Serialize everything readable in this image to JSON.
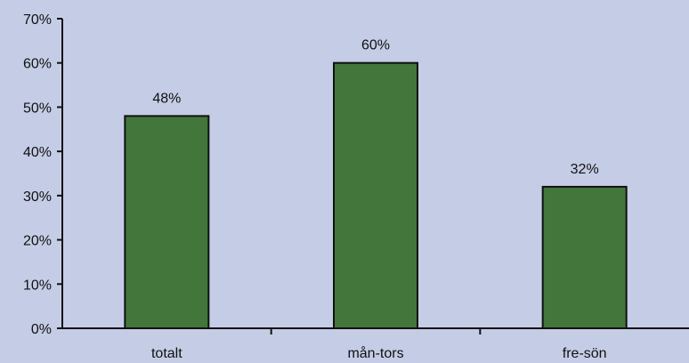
{
  "colors": {
    "background": "#c5cde6",
    "bar_fill": "#43763b",
    "bar_stroke": "#111111",
    "axis": "#111111"
  },
  "chart_data": {
    "type": "bar",
    "categories": [
      "totalt",
      "mån-tors",
      "fre-sön"
    ],
    "values": [
      48,
      60,
      32
    ],
    "value_labels": [
      "48%",
      "60%",
      "32%"
    ],
    "ylim": [
      0,
      70
    ],
    "yticks": [
      0,
      10,
      20,
      30,
      40,
      50,
      60,
      70
    ],
    "ytick_labels": [
      "0%",
      "10%",
      "20%",
      "30%",
      "40%",
      "50%",
      "60%",
      "70%"
    ],
    "title": "",
    "xlabel": "",
    "ylabel": "",
    "grid": false,
    "legend": "none"
  }
}
